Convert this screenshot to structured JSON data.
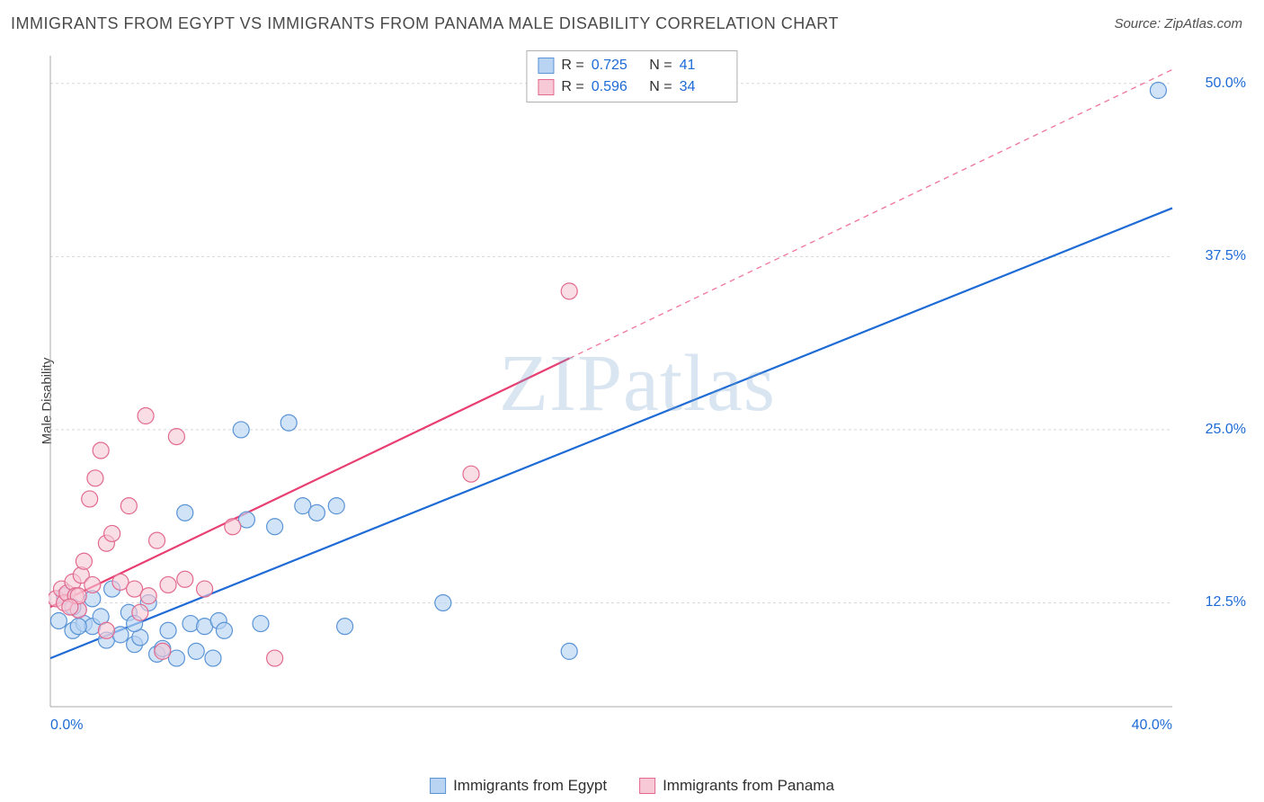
{
  "title": "IMMIGRANTS FROM EGYPT VS IMMIGRANTS FROM PANAMA MALE DISABILITY CORRELATION CHART",
  "source": "Source: ZipAtlas.com",
  "ylabel": "Male Disability",
  "watermark": "ZIPatlas",
  "chart": {
    "type": "scatter",
    "background_color": "#ffffff",
    "grid_color": "#d8d8d8",
    "axis_color": "#a8a8a8",
    "xlim": [
      0,
      40
    ],
    "ylim": [
      5,
      52
    ],
    "xticks": [
      {
        "v": 0,
        "label": "0.0%"
      },
      {
        "v": 40,
        "label": "40.0%"
      }
    ],
    "yticks": [
      {
        "v": 12.5,
        "label": "12.5%"
      },
      {
        "v": 25,
        "label": "25.0%"
      },
      {
        "v": 37.5,
        "label": "37.5%"
      },
      {
        "v": 50,
        "label": "50.0%"
      }
    ],
    "series": [
      {
        "name": "Immigrants from Egypt",
        "marker_fill": "#b9d4f3",
        "marker_stroke": "#5a94d6",
        "marker_fill_opacity": 0.65,
        "marker_radius": 9,
        "line_color": "#1e6bd6",
        "line_width": 2.2,
        "stats": {
          "R": "0.725",
          "N": "41"
        },
        "stat_color": "#1e6bd6",
        "trend": {
          "x1": 0,
          "y1": 8.5,
          "x2": 40,
          "y2": 41.0,
          "solid_until_x": 40
        },
        "points": [
          [
            0.3,
            11.2
          ],
          [
            0.5,
            13.0
          ],
          [
            0.8,
            10.5
          ],
          [
            1.0,
            12.0
          ],
          [
            1.2,
            11.0
          ],
          [
            1.5,
            10.8
          ],
          [
            1.8,
            11.5
          ],
          [
            2.0,
            9.8
          ],
          [
            2.2,
            13.5
          ],
          [
            2.5,
            10.2
          ],
          [
            2.8,
            11.8
          ],
          [
            3.0,
            9.5
          ],
          [
            3.2,
            10.0
          ],
          [
            3.5,
            12.5
          ],
          [
            3.8,
            8.8
          ],
          [
            4.0,
            9.2
          ],
          [
            4.2,
            10.5
          ],
          [
            4.5,
            8.5
          ],
          [
            4.8,
            19.0
          ],
          [
            5.0,
            11.0
          ],
          [
            5.5,
            10.8
          ],
          [
            5.8,
            8.5
          ],
          [
            6.0,
            11.2
          ],
          [
            6.2,
            10.5
          ],
          [
            6.8,
            25.0
          ],
          [
            7.0,
            18.5
          ],
          [
            7.5,
            11.0
          ],
          [
            8.0,
            18.0
          ],
          [
            8.5,
            25.5
          ],
          [
            9.0,
            19.5
          ],
          [
            9.5,
            19.0
          ],
          [
            10.2,
            19.5
          ],
          [
            10.5,
            10.8
          ],
          [
            14.0,
            12.5
          ],
          [
            18.5,
            9.0
          ],
          [
            39.5,
            49.5
          ],
          [
            5.2,
            9.0
          ],
          [
            3.0,
            11.0
          ],
          [
            1.0,
            10.8
          ],
          [
            0.8,
            12.2
          ],
          [
            1.5,
            12.8
          ]
        ]
      },
      {
        "name": "Immigrants from Panama",
        "marker_fill": "#f7c8d5",
        "marker_stroke": "#e26a8f",
        "marker_fill_opacity": 0.6,
        "marker_radius": 9,
        "line_color": "#e83e72",
        "line_width": 2.2,
        "stats": {
          "R": "0.596",
          "N": "34"
        },
        "stat_color": "#1e6bd6",
        "trend": {
          "x1": 0,
          "y1": 12.2,
          "x2": 40,
          "y2": 51.0,
          "solid_until_x": 18.5
        },
        "points": [
          [
            0.2,
            12.8
          ],
          [
            0.4,
            13.5
          ],
          [
            0.5,
            12.5
          ],
          [
            0.6,
            13.2
          ],
          [
            0.8,
            14.0
          ],
          [
            0.9,
            13.0
          ],
          [
            1.0,
            12.0
          ],
          [
            1.1,
            14.5
          ],
          [
            1.2,
            15.5
          ],
          [
            1.4,
            20.0
          ],
          [
            1.5,
            13.8
          ],
          [
            1.6,
            21.5
          ],
          [
            1.8,
            23.5
          ],
          [
            2.0,
            16.8
          ],
          [
            2.2,
            17.5
          ],
          [
            2.5,
            14.0
          ],
          [
            2.8,
            19.5
          ],
          [
            3.0,
            13.5
          ],
          [
            3.2,
            11.8
          ],
          [
            3.4,
            26.0
          ],
          [
            3.5,
            13.0
          ],
          [
            3.8,
            17.0
          ],
          [
            4.0,
            9.0
          ],
          [
            4.2,
            13.8
          ],
          [
            4.5,
            24.5
          ],
          [
            4.8,
            14.2
          ],
          [
            5.5,
            13.5
          ],
          [
            6.5,
            18.0
          ],
          [
            8.0,
            8.5
          ],
          [
            2.0,
            10.5
          ],
          [
            15.0,
            21.8
          ],
          [
            18.5,
            35.0
          ],
          [
            1.0,
            13.0
          ],
          [
            0.7,
            12.2
          ]
        ]
      }
    ]
  },
  "legend": {
    "items": [
      {
        "label": "Immigrants from Egypt",
        "fill": "#b9d4f3",
        "stroke": "#5a94d6"
      },
      {
        "label": "Immigrants from Panama",
        "fill": "#f7c8d5",
        "stroke": "#e26a8f"
      }
    ]
  }
}
